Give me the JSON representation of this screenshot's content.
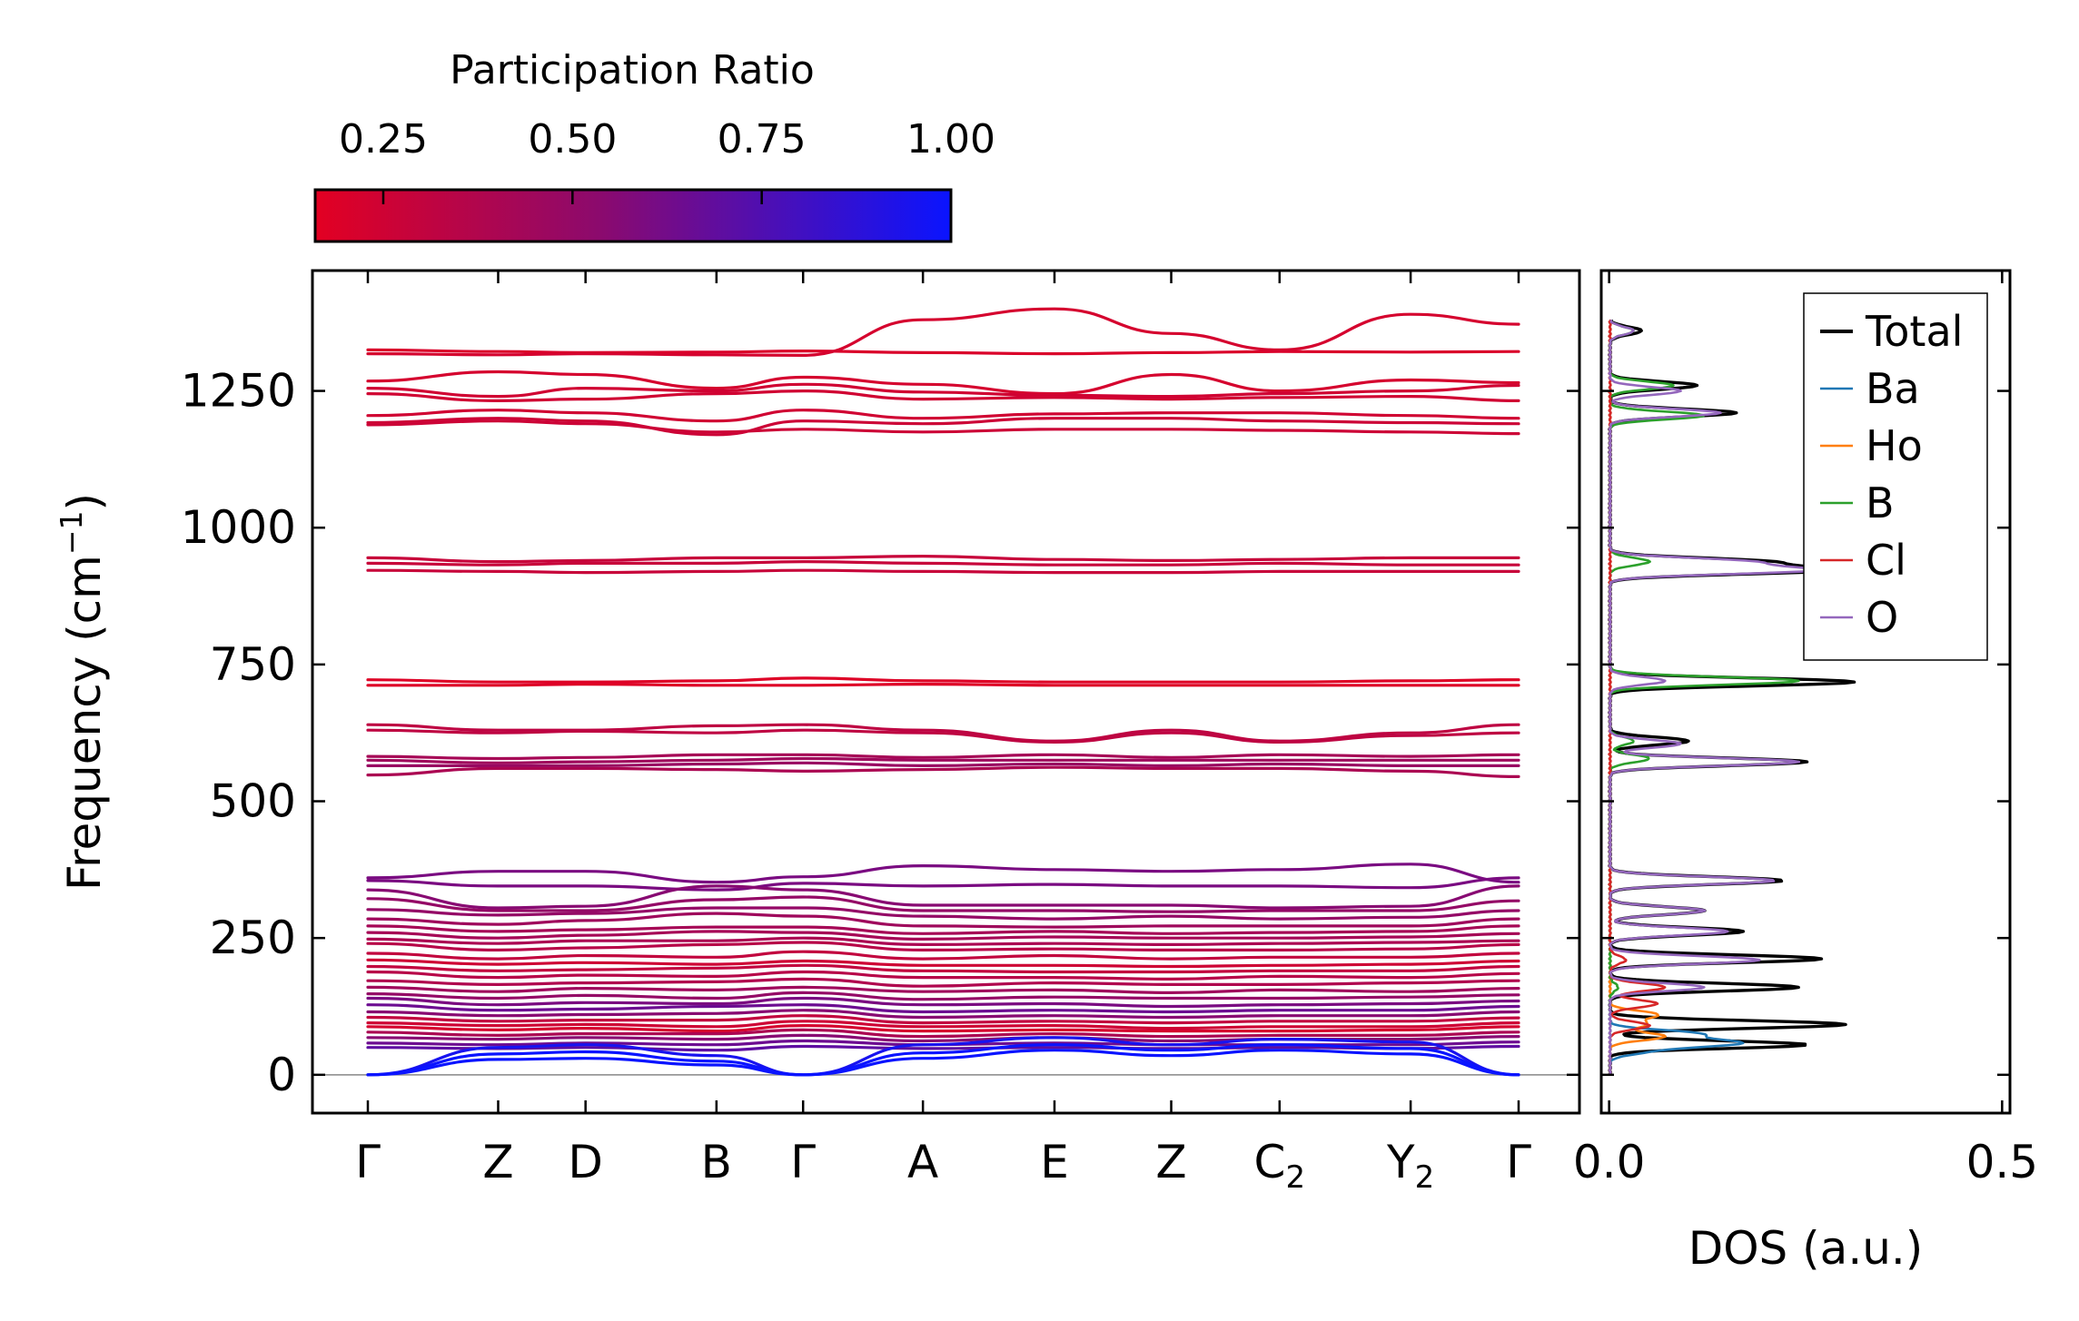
{
  "chart_data": [
    {
      "type": "line",
      "kind": "phonon-band-structure",
      "title": "",
      "ylabel": "Frequency (cm$^{-1}$)",
      "ylabel_text": "Frequency (cm",
      "ylabel_sup": "−1",
      "ylabel_close": ")",
      "ylim": [
        -70,
        1470
      ],
      "yticks": [
        0,
        250,
        500,
        750,
        1000,
        1250
      ],
      "ytick_labels": [
        "0",
        "250",
        "500",
        "750",
        "1000",
        "1250"
      ],
      "x_range": [
        0,
        1
      ],
      "kpoints": [
        {
          "label": "Γ",
          "sub": "",
          "x": 0.0
        },
        {
          "label": "Z",
          "sub": "",
          "x": 0.1056
        },
        {
          "label": "D",
          "sub": "",
          "x": 0.1764
        },
        {
          "label": "B",
          "sub": "",
          "x": 0.2825
        },
        {
          "label": "Γ",
          "sub": "",
          "x": 0.3527
        },
        {
          "label": "A",
          "sub": "",
          "x": 0.4498
        },
        {
          "label": "E",
          "sub": "",
          "x": 0.5564
        },
        {
          "label": "Z",
          "sub": "",
          "x": 0.651
        },
        {
          "label": "C",
          "sub": "2",
          "x": 0.7388
        },
        {
          "label": "Y",
          "sub": "2",
          "x": 0.845
        },
        {
          "label": "Γ",
          "sub": "",
          "x": 0.9325
        }
      ],
      "colorbar": {
        "label": "Participation Ratio",
        "range": [
          0.16,
          1.0
        ],
        "ticks": [
          0.25,
          0.5,
          0.75,
          1.0
        ],
        "tick_labels": [
          "0.25",
          "0.50",
          "0.75",
          "1.00"
        ],
        "color_low": "#e30022",
        "color_mid": "#8b0a6e",
        "color_high": "#0a14ff"
      },
      "bands_high": [
        {
          "f": [
            1325,
            1322,
            1320,
            1321,
            1323,
            1320,
            1318,
            1320,
            1322,
            1321,
            1322
          ],
          "pr": 0.2
        },
        {
          "f": [
            1318,
            1316,
            1318,
            1316,
            1315,
            1380,
            1400,
            1355,
            1325,
            1390,
            1372
          ],
          "pr": 0.22
        },
        {
          "f": [
            1268,
            1285,
            1280,
            1255,
            1275,
            1262,
            1245,
            1280,
            1250,
            1270,
            1265
          ],
          "pr": 0.22
        },
        {
          "f": [
            1255,
            1240,
            1255,
            1250,
            1262,
            1248,
            1242,
            1240,
            1245,
            1250,
            1260
          ],
          "pr": 0.24
        },
        {
          "f": [
            1245,
            1232,
            1235,
            1245,
            1250,
            1235,
            1238,
            1235,
            1238,
            1240,
            1232
          ],
          "pr": 0.24
        },
        {
          "f": [
            1205,
            1215,
            1210,
            1195,
            1215,
            1200,
            1208,
            1210,
            1210,
            1205,
            1200
          ],
          "pr": 0.24
        },
        {
          "f": [
            1192,
            1200,
            1195,
            1170,
            1195,
            1190,
            1200,
            1200,
            1195,
            1192,
            1190
          ],
          "pr": 0.26
        },
        {
          "f": [
            1188,
            1195,
            1190,
            1175,
            1180,
            1175,
            1180,
            1180,
            1178,
            1175,
            1172
          ],
          "pr": 0.26
        },
        {
          "f": [
            945,
            938,
            940,
            945,
            945,
            948,
            942,
            940,
            942,
            945,
            945
          ],
          "pr": 0.28
        },
        {
          "f": [
            935,
            932,
            935,
            935,
            938,
            935,
            932,
            932,
            935,
            932,
            932
          ],
          "pr": 0.28
        },
        {
          "f": [
            922,
            920,
            918,
            920,
            922,
            920,
            918,
            918,
            920,
            920,
            920
          ],
          "pr": 0.28
        },
        {
          "f": [
            722,
            718,
            718,
            720,
            725,
            720,
            718,
            718,
            718,
            720,
            722
          ],
          "pr": 0.18
        },
        {
          "f": [
            712,
            712,
            714,
            712,
            712,
            714,
            712,
            712,
            712,
            712,
            712
          ],
          "pr": 0.18
        },
        {
          "f": [
            640,
            630,
            630,
            638,
            640,
            630,
            610,
            630,
            610,
            625,
            640
          ],
          "pr": 0.32
        },
        {
          "f": [
            630,
            625,
            628,
            625,
            630,
            625,
            608,
            625,
            608,
            620,
            625
          ],
          "pr": 0.32
        },
        {
          "f": [
            582,
            578,
            580,
            585,
            585,
            580,
            585,
            580,
            585,
            582,
            585
          ],
          "pr": 0.42
        },
        {
          "f": [
            575,
            570,
            572,
            575,
            578,
            575,
            575,
            575,
            575,
            575,
            575
          ],
          "pr": 0.45
        },
        {
          "f": [
            565,
            565,
            565,
            568,
            570,
            565,
            568,
            565,
            568,
            565,
            565
          ],
          "pr": 0.48
        },
        {
          "f": [
            548,
            560,
            560,
            558,
            555,
            558,
            562,
            560,
            560,
            555,
            545
          ],
          "pr": 0.4
        }
      ],
      "bands_low": [
        {
          "f": [
            360,
            372,
            372,
            352,
            362,
            382,
            375,
            372,
            375,
            385,
            352
          ],
          "pr": 0.6
        },
        {
          "f": [
            355,
            345,
            345,
            338,
            350,
            345,
            348,
            345,
            345,
            342,
            360
          ],
          "pr": 0.6
        },
        {
          "f": [
            338,
            305,
            308,
            345,
            338,
            310,
            310,
            310,
            305,
            308,
            345
          ],
          "pr": 0.55
        },
        {
          "f": [
            322,
            300,
            300,
            320,
            325,
            300,
            300,
            298,
            300,
            300,
            318
          ],
          "pr": 0.5
        },
        {
          "f": [
            302,
            292,
            295,
            305,
            305,
            290,
            285,
            290,
            285,
            288,
            300
          ],
          "pr": 0.5
        },
        {
          "f": [
            285,
            275,
            282,
            295,
            290,
            272,
            270,
            272,
            272,
            272,
            285
          ],
          "pr": 0.45
        },
        {
          "f": [
            272,
            262,
            265,
            270,
            270,
            258,
            262,
            258,
            260,
            262,
            272
          ],
          "pr": 0.42
        },
        {
          "f": [
            260,
            250,
            255,
            262,
            260,
            248,
            252,
            250,
            250,
            252,
            258
          ],
          "pr": 0.42
        },
        {
          "f": [
            248,
            240,
            245,
            245,
            250,
            238,
            240,
            238,
            240,
            242,
            245
          ],
          "pr": 0.4
        },
        {
          "f": [
            240,
            228,
            232,
            238,
            242,
            228,
            230,
            228,
            228,
            230,
            238
          ],
          "pr": 0.35
        },
        {
          "f": [
            222,
            212,
            218,
            215,
            225,
            212,
            218,
            212,
            215,
            215,
            222
          ],
          "pr": 0.3
        },
        {
          "f": [
            210,
            202,
            205,
            202,
            208,
            200,
            200,
            198,
            200,
            202,
            208
          ],
          "pr": 0.25
        },
        {
          "f": [
            198,
            190,
            192,
            195,
            200,
            190,
            188,
            188,
            190,
            190,
            198
          ],
          "pr": 0.3
        },
        {
          "f": [
            188,
            178,
            182,
            180,
            188,
            178,
            178,
            175,
            180,
            178,
            185
          ],
          "pr": 0.35
        },
        {
          "f": [
            172,
            165,
            168,
            170,
            175,
            162,
            168,
            165,
            165,
            168,
            172
          ],
          "pr": 0.38
        },
        {
          "f": [
            160,
            152,
            158,
            155,
            160,
            152,
            155,
            150,
            155,
            152,
            158
          ],
          "pr": 0.45
        },
        {
          "f": [
            148,
            140,
            145,
            140,
            150,
            138,
            142,
            140,
            140,
            142,
            146
          ],
          "pr": 0.5
        },
        {
          "f": [
            140,
            128,
            132,
            130,
            140,
            128,
            130,
            125,
            128,
            130,
            135
          ],
          "pr": 0.6
        },
        {
          "f": [
            128,
            118,
            120,
            125,
            128,
            115,
            118,
            115,
            118,
            118,
            125
          ],
          "pr": 0.65
        },
        {
          "f": [
            115,
            108,
            110,
            112,
            118,
            105,
            108,
            105,
            108,
            108,
            115
          ],
          "pr": 0.55
        },
        {
          "f": [
            105,
            98,
            100,
            100,
            108,
            95,
            98,
            95,
            98,
            98,
            104
          ],
          "pr": 0.3
        },
        {
          "f": [
            95,
            90,
            92,
            88,
            98,
            88,
            90,
            85,
            88,
            88,
            95
          ],
          "pr": 0.25
        },
        {
          "f": [
            88,
            82,
            85,
            80,
            90,
            80,
            82,
            80,
            80,
            82,
            88
          ],
          "pr": 0.22
        },
        {
          "f": [
            78,
            72,
            75,
            75,
            82,
            70,
            75,
            70,
            72,
            72,
            78
          ],
          "pr": 0.4
        },
        {
          "f": [
            68,
            65,
            68,
            65,
            72,
            62,
            68,
            62,
            65,
            65,
            70
          ],
          "pr": 0.55
        },
        {
          "f": [
            58,
            55,
            58,
            55,
            62,
            55,
            58,
            55,
            55,
            55,
            60
          ],
          "pr": 0.65
        },
        {
          "f": [
            50,
            48,
            50,
            45,
            52,
            48,
            50,
            48,
            50,
            48,
            52
          ],
          "pr": 0.7
        },
        {
          "f": [
            0,
            50,
            55,
            35,
            0,
            55,
            68,
            55,
            65,
            60,
            0
          ],
          "pr": 0.95
        },
        {
          "f": [
            0,
            38,
            42,
            25,
            0,
            40,
            55,
            45,
            55,
            48,
            0
          ],
          "pr": 1.0
        },
        {
          "f": [
            0,
            28,
            30,
            18,
            0,
            30,
            45,
            35,
            45,
            38,
            0
          ],
          "pr": 1.0
        }
      ]
    },
    {
      "type": "line",
      "kind": "density-of-states",
      "xlabel": "DOS (a.u.)",
      "xlim": [
        -0.01,
        0.51
      ],
      "xticks": [
        0.0,
        0.5
      ],
      "xtick_labels": [
        "0.0",
        "0.5"
      ],
      "legend_position": "top-right",
      "series": [
        {
          "name": "Total",
          "color": "#000000",
          "peaks": [
            [
              1360,
              0.04
            ],
            [
              1260,
              0.11
            ],
            [
              1210,
              0.16
            ],
            [
              938,
              0.19
            ],
            [
              922,
              0.28
            ],
            [
              718,
              0.31
            ],
            [
              610,
              0.1
            ],
            [
              572,
              0.25
            ],
            [
              355,
              0.22
            ],
            [
              300,
              0.12
            ],
            [
              262,
              0.17
            ],
            [
              212,
              0.27
            ],
            [
              160,
              0.24
            ],
            [
              92,
              0.3
            ],
            [
              55,
              0.25
            ]
          ]
        },
        {
          "name": "Ba",
          "color": "#1f77b4",
          "peaks": [
            [
              75,
              0.11
            ],
            [
              58,
              0.16
            ],
            [
              42,
              0.05
            ]
          ]
        },
        {
          "name": "Ho",
          "color": "#ff7f0e",
          "peaks": [
            [
              110,
              0.06
            ],
            [
              92,
              0.045
            ],
            [
              70,
              0.07
            ]
          ]
        },
        {
          "name": "B",
          "color": "#2ca02c",
          "peaks": [
            [
              1360,
              0.03
            ],
            [
              1260,
              0.08
            ],
            [
              1205,
              0.12
            ],
            [
              938,
              0.05
            ],
            [
              720,
              0.24
            ],
            [
              610,
              0.03
            ],
            [
              578,
              0.05
            ],
            [
              160,
              0.01
            ]
          ]
        },
        {
          "name": "Cl",
          "color": "#d62728",
          "peaks": [
            [
              160,
              0.07
            ],
            [
              130,
              0.06
            ],
            [
              90,
              0.05
            ],
            [
              210,
              0.02
            ]
          ]
        },
        {
          "name": "O",
          "color": "#9467bd",
          "peaks": [
            [
              1360,
              0.03
            ],
            [
              1250,
              0.09
            ],
            [
              1210,
              0.14
            ],
            [
              938,
              0.17
            ],
            [
              922,
              0.25
            ],
            [
              720,
              0.07
            ],
            [
              605,
              0.09
            ],
            [
              572,
              0.24
            ],
            [
              355,
              0.21
            ],
            [
              300,
              0.12
            ],
            [
              262,
              0.15
            ],
            [
              210,
              0.19
            ],
            [
              160,
              0.12
            ]
          ]
        }
      ]
    }
  ]
}
